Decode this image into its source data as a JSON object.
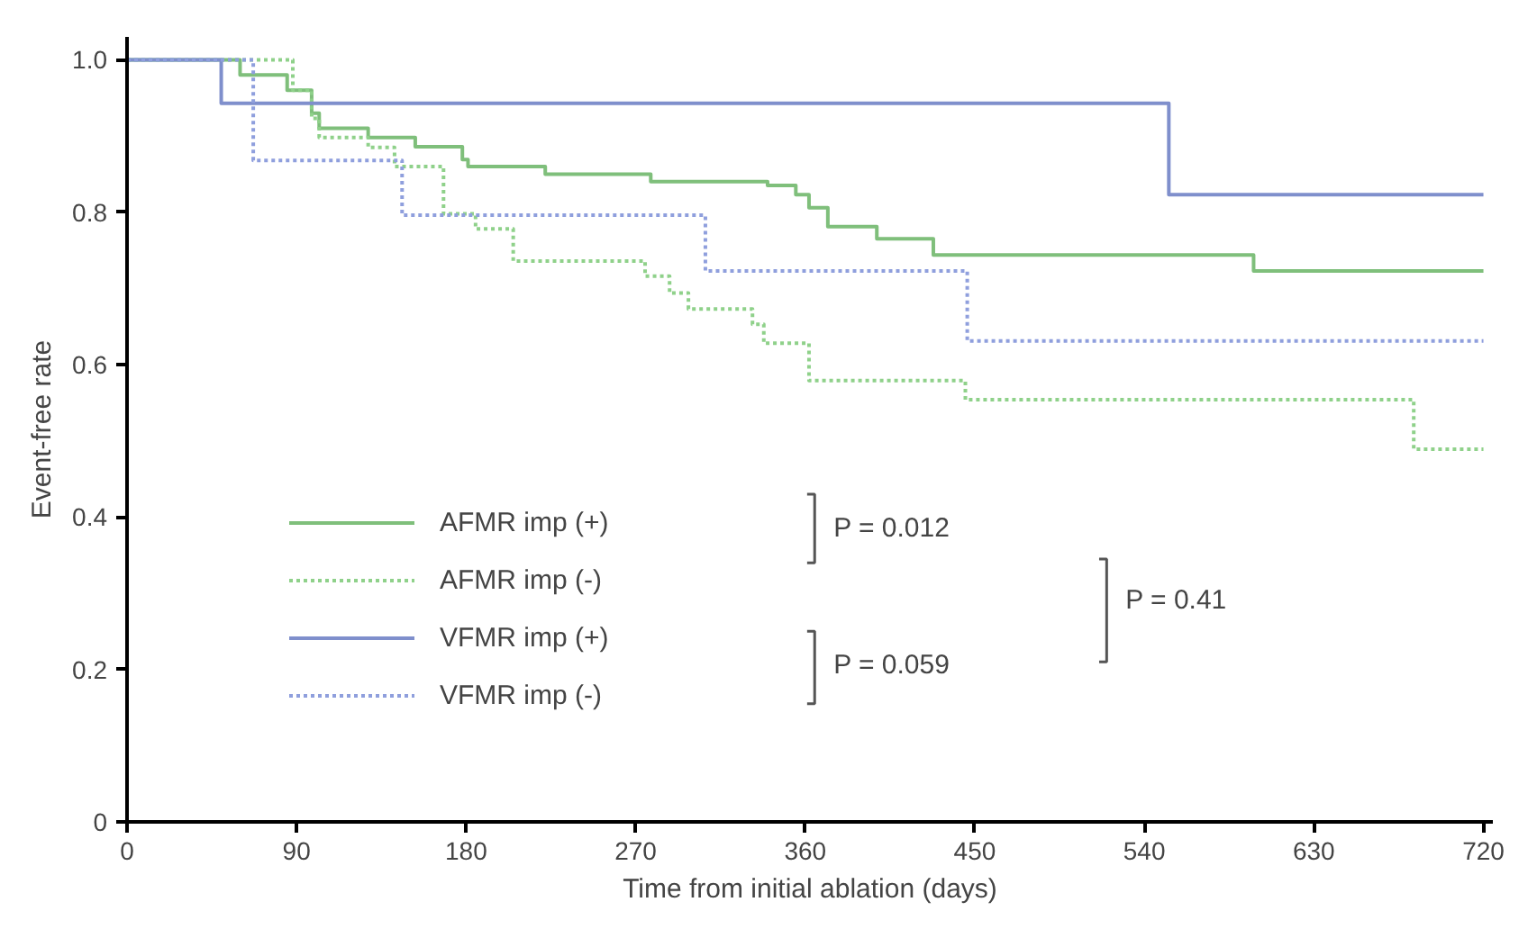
{
  "chart_data": {
    "type": "step",
    "xlabel": "Time from initial ablation (days)",
    "ylabel": "Event-free rate",
    "xlim": [
      0,
      725
    ],
    "xticks": [
      0,
      90,
      180,
      270,
      360,
      450,
      540,
      630,
      720
    ],
    "ylim": [
      0,
      1.03
    ],
    "yticks": [
      0,
      0.2,
      0.4,
      0.6,
      0.8,
      {
        "value": 1.0,
        "label": "1.0"
      }
    ],
    "grid": false,
    "legend": "bottom left",
    "series": [
      {
        "name": "AFMR imp (+)",
        "color": "#7fbf7b",
        "line_style": "solid",
        "x": [
          0,
          60,
          85,
          98,
          102,
          128,
          153,
          178,
          181,
          222,
          278,
          340,
          355,
          362,
          372,
          398,
          428,
          598,
          720
        ],
        "values": [
          1.0,
          0.98,
          0.96,
          0.93,
          0.91,
          0.898,
          0.886,
          0.869,
          0.86,
          0.85,
          0.84,
          0.835,
          0.823,
          0.806,
          0.781,
          0.765,
          0.744,
          0.723,
          0.723
        ]
      },
      {
        "name": "AFMR imp (-)",
        "color": "#8fd18a",
        "line_style": "dotted",
        "x": [
          0,
          88,
          98,
          102,
          128,
          142,
          168,
          185,
          205,
          275,
          288,
          298,
          332,
          338,
          362,
          445,
          683,
          720
        ],
        "values": [
          1.0,
          0.96,
          0.923,
          0.898,
          0.885,
          0.86,
          0.798,
          0.778,
          0.736,
          0.716,
          0.694,
          0.673,
          0.653,
          0.628,
          0.579,
          0.554,
          0.489,
          0.489
        ]
      },
      {
        "name": "VFMR imp (+)",
        "color": "#7f8fcc",
        "line_style": "solid",
        "x": [
          0,
          50,
          553,
          720
        ],
        "values": [
          1.0,
          0.943,
          0.823,
          0.823
        ]
      },
      {
        "name": "VFMR imp (-)",
        "color": "#8f9fdd",
        "line_style": "dotted",
        "x": [
          0,
          67,
          146,
          307,
          446,
          720
        ],
        "values": [
          1.0,
          0.868,
          0.796,
          0.723,
          0.631,
          0.631
        ]
      }
    ],
    "annotations": [
      "P = 0.012",
      "P = 0.059",
      "P = 0.41"
    ]
  }
}
